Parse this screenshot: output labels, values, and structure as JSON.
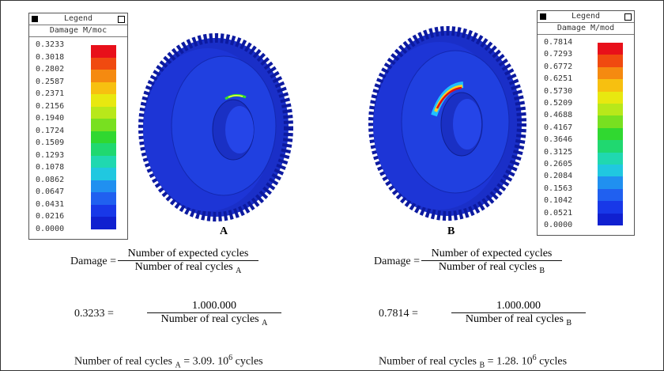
{
  "panels": [
    {
      "legend": {
        "title": "Legend",
        "subtitle": "Damage M/moc",
        "values": [
          "0.3233",
          "0.3018",
          "0.2802",
          "0.2587",
          "0.2371",
          "0.2156",
          "0.1940",
          "0.1724",
          "0.1509",
          "0.1293",
          "0.1078",
          "0.0862",
          "0.0647",
          "0.0431",
          "0.0216",
          "0.0000"
        ]
      },
      "label": "A",
      "damage_eq": {
        "lhs": "Damage =",
        "numerator": "Number of expected cycles",
        "denominator": "Number of real cycles",
        "subscript": "A"
      },
      "value_eq": {
        "lhs": "0.3233 =",
        "numerator": "1.000.000",
        "denominator": "Number of real cycles",
        "subscript": "A"
      },
      "result": {
        "lhs": "Number of real cycles",
        "subscript": "A",
        "rhs": "= 3.09. 10",
        "superscript": "6",
        "unit": "cycles"
      }
    },
    {
      "legend": {
        "title": "Legend",
        "subtitle": "Damage M/mod",
        "values": [
          "0.7814",
          "0.7293",
          "0.6772",
          "0.6251",
          "0.5730",
          "0.5209",
          "0.4688",
          "0.4167",
          "0.3646",
          "0.3125",
          "0.2605",
          "0.2084",
          "0.1563",
          "0.1042",
          "0.0521",
          "0.0000"
        ]
      },
      "label": "B",
      "damage_eq": {
        "lhs": "Damage =",
        "numerator": "Number of expected cycles",
        "denominator": "Number of real cycles",
        "subscript": "B"
      },
      "value_eq": {
        "lhs": "0.7814 =",
        "numerator": "1.000.000",
        "denominator": "Number of real cycles",
        "subscript": "B"
      },
      "result": {
        "lhs": "Number of real cycles",
        "subscript": "B",
        "rhs": "= 1.28. 10",
        "superscript": "6",
        "unit": "cycles"
      }
    }
  ]
}
